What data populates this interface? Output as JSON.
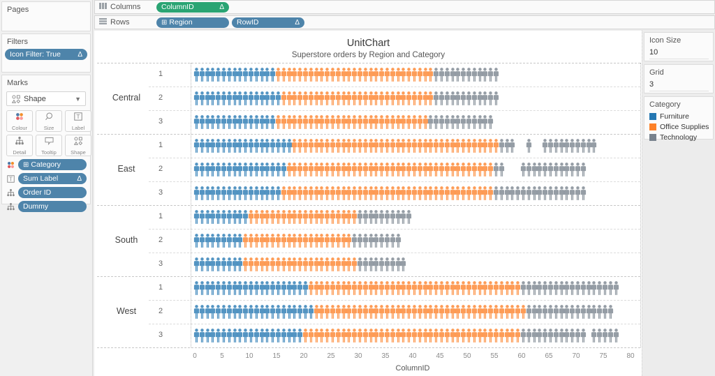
{
  "shelves": {
    "columns": {
      "label": "Columns",
      "pills": [
        {
          "label": "ColumnID",
          "delta": "Δ"
        }
      ]
    },
    "rows": {
      "label": "Rows",
      "pills": [
        {
          "label": "Region",
          "prefix": "⊞"
        },
        {
          "label": "RowID",
          "delta": "Δ"
        }
      ]
    }
  },
  "left_panel": {
    "pages": {
      "title": "Pages"
    },
    "filters": {
      "title": "Filters",
      "pills": [
        {
          "label": "Icon Filter: True",
          "delta": "Δ"
        }
      ]
    },
    "marks": {
      "title": "Marks",
      "mark_type": "Shape",
      "buttons": [
        {
          "label": "Colour"
        },
        {
          "label": "Size"
        },
        {
          "label": "Label"
        },
        {
          "label": "Detail"
        },
        {
          "label": "Tooltip"
        },
        {
          "label": "Shape"
        }
      ],
      "pills": [
        {
          "label": "Category",
          "prefix": "⊞"
        },
        {
          "label": "Sum Label",
          "delta": "Δ"
        },
        {
          "label": "Order ID"
        },
        {
          "label": "Dummy"
        }
      ]
    }
  },
  "right_panel": {
    "icon_size": {
      "title": "Icon Size",
      "value": "10"
    },
    "grid": {
      "title": "Grid",
      "value": "3"
    },
    "legend": {
      "title": "Category",
      "items": [
        {
          "label": "Furniture",
          "color": "#2477b2"
        },
        {
          "label": "Office Supplies",
          "color": "#fd8128"
        },
        {
          "label": "Technology",
          "color": "#78828d"
        }
      ]
    }
  },
  "chart_data": {
    "type": "unit-pictogram",
    "title": "UnitChart",
    "subtitle": "Superstore orders by Region and Category",
    "xlabel": "ColumnID",
    "xlim": [
      0,
      80
    ],
    "x_ticks": [
      0,
      5,
      10,
      15,
      20,
      25,
      30,
      35,
      40,
      45,
      50,
      55,
      60,
      65,
      70,
      75,
      80
    ],
    "grid_rows_per_region": 3,
    "category_colors": {
      "furniture": "#2477b2",
      "office": "#fd8128",
      "technology": "#78828d"
    },
    "legend_names": {
      "furniture": "Furniture",
      "office": "Office Supplies",
      "technology": "Technology"
    },
    "regions": [
      {
        "name": "Central",
        "rows": [
          {
            "id": "1",
            "runs": [
              [
                "furniture",
                15
              ],
              [
                "office",
                29
              ],
              [
                "technology",
                12
              ]
            ]
          },
          {
            "id": "2",
            "runs": [
              [
                "furniture",
                16
              ],
              [
                "office",
                28
              ],
              [
                "technology",
                12
              ]
            ]
          },
          {
            "id": "3",
            "runs": [
              [
                "furniture",
                15
              ],
              [
                "office",
                28
              ],
              [
                "technology",
                12
              ]
            ]
          }
        ]
      },
      {
        "name": "East",
        "rows": [
          {
            "id": "1",
            "runs": [
              [
                "furniture",
                18
              ],
              [
                "office",
                38
              ],
              [
                "technology",
                3
              ],
              [
                "gap",
                2
              ],
              [
                "technology",
                1
              ],
              [
                "gap",
                2
              ],
              [
                "technology",
                10
              ]
            ]
          },
          {
            "id": "2",
            "runs": [
              [
                "furniture",
                17
              ],
              [
                "office",
                38
              ],
              [
                "technology",
                2
              ],
              [
                "gap",
                3
              ],
              [
                "technology",
                12
              ]
            ]
          },
          {
            "id": "3",
            "runs": [
              [
                "furniture",
                16
              ],
              [
                "office",
                39
              ],
              [
                "technology",
                17
              ]
            ]
          }
        ]
      },
      {
        "name": "South",
        "rows": [
          {
            "id": "1",
            "runs": [
              [
                "furniture",
                10
              ],
              [
                "office",
                20
              ],
              [
                "technology",
                10
              ]
            ]
          },
          {
            "id": "2",
            "runs": [
              [
                "furniture",
                9
              ],
              [
                "office",
                20
              ],
              [
                "technology",
                9
              ]
            ]
          },
          {
            "id": "3",
            "runs": [
              [
                "furniture",
                9
              ],
              [
                "office",
                21
              ],
              [
                "technology",
                9
              ]
            ]
          }
        ]
      },
      {
        "name": "West",
        "rows": [
          {
            "id": "1",
            "runs": [
              [
                "furniture",
                21
              ],
              [
                "office",
                39
              ],
              [
                "technology",
                18
              ]
            ]
          },
          {
            "id": "2",
            "runs": [
              [
                "furniture",
                22
              ],
              [
                "office",
                39
              ],
              [
                "technology",
                16
              ]
            ]
          },
          {
            "id": "3",
            "runs": [
              [
                "furniture",
                20
              ],
              [
                "office",
                40
              ],
              [
                "technology",
                12
              ],
              [
                "gap",
                1
              ],
              [
                "technology",
                5
              ]
            ]
          }
        ]
      }
    ]
  }
}
